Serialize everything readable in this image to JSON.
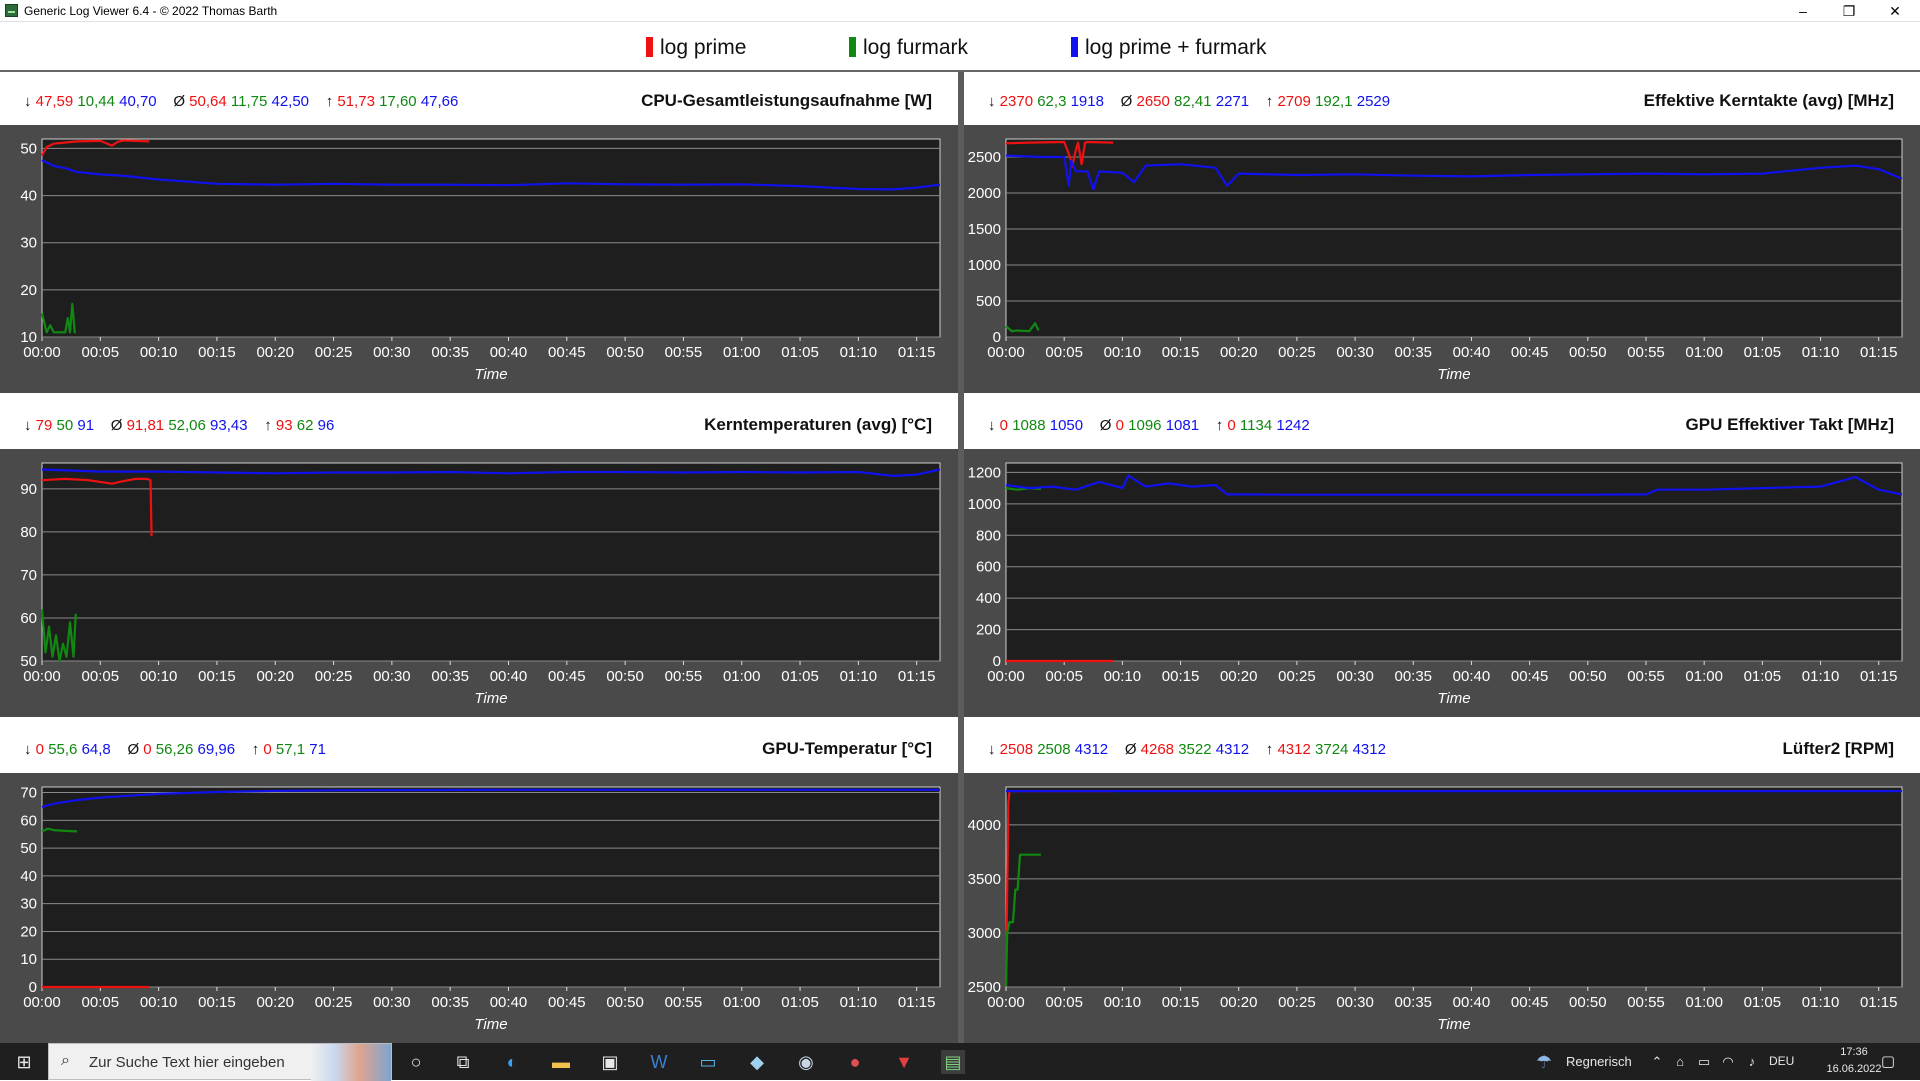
{
  "window": {
    "title": "Generic Log Viewer 6.4 - © 2022 Thomas Barth",
    "controls": {
      "minimize": "–",
      "restore": "❐",
      "close": "✕"
    }
  },
  "legend": [
    {
      "label": "log prime",
      "color": "#ee1111"
    },
    {
      "label": "log furmark",
      "color": "#118811"
    },
    {
      "label": "log prime + furmark",
      "color": "#1111ee"
    }
  ],
  "colors": {
    "prime": "#ee1111",
    "furmark": "#118811",
    "combined": "#1111ee",
    "plot_bg": "#1e1e1e",
    "panel_bg": "#4a4a4a",
    "grid": "#8a8a8a"
  },
  "panels": [
    {
      "title": "CPU-Gesamtleistungsaufnahme [W]",
      "stats": {
        "min_symbol": "↓",
        "avg_symbol": "Ø",
        "max_symbol": "↑",
        "min": [
          "47,59",
          "10,44",
          "40,70"
        ],
        "avg": [
          "50,64",
          "11,75",
          "42,50"
        ],
        "max": [
          "51,73",
          "17,60",
          "47,66"
        ]
      }
    },
    {
      "title": "Effektive Kerntakte (avg) [MHz]",
      "stats": {
        "min_symbol": "↓",
        "avg_symbol": "Ø",
        "max_symbol": "↑",
        "min": [
          "2370",
          "62,3",
          "1918"
        ],
        "avg": [
          "2650",
          "82,41",
          "2271"
        ],
        "max": [
          "2709",
          "192,1",
          "2529"
        ]
      }
    },
    {
      "title": "Kerntemperaturen (avg) [°C]",
      "stats": {
        "min_symbol": "↓",
        "avg_symbol": "Ø",
        "max_symbol": "↑",
        "min": [
          "79",
          "50",
          "91"
        ],
        "avg": [
          "91,81",
          "52,06",
          "93,43"
        ],
        "max": [
          "93",
          "62",
          "96"
        ]
      }
    },
    {
      "title": "GPU Effektiver Takt [MHz]",
      "stats": {
        "min_symbol": "↓",
        "avg_symbol": "Ø",
        "max_symbol": "↑",
        "min": [
          "0",
          "1088",
          "1050"
        ],
        "avg": [
          "0",
          "1096",
          "1081"
        ],
        "max": [
          "0",
          "1134",
          "1242"
        ]
      }
    },
    {
      "title": "GPU-Temperatur [°C]",
      "stats": {
        "min_symbol": "↓",
        "avg_symbol": "Ø",
        "max_symbol": "↑",
        "min": [
          "0",
          "55,6",
          "64,8"
        ],
        "avg": [
          "0",
          "56,26",
          "69,96"
        ],
        "max": [
          "0",
          "57,1",
          "71"
        ]
      }
    },
    {
      "title": "Lüfter2 [RPM]",
      "stats": {
        "min_symbol": "↓",
        "avg_symbol": "Ø",
        "max_symbol": "↑",
        "min": [
          "2508",
          "2508",
          "4312"
        ],
        "avg": [
          "4268",
          "3522",
          "4312"
        ],
        "max": [
          "4312",
          "3724",
          "4312"
        ]
      }
    }
  ],
  "chart_data": [
    {
      "type": "line",
      "title": "CPU-Gesamtleistungsaufnahme [W]",
      "xlabel": "Time",
      "xlim": [
        0,
        77
      ],
      "ylim": [
        10,
        52
      ],
      "yticks": [
        10,
        20,
        30,
        40,
        50
      ],
      "xticks": [
        "00:00",
        "00:05",
        "00:10",
        "00:15",
        "00:20",
        "00:25",
        "00:30",
        "00:35",
        "00:40",
        "00:45",
        "00:50",
        "00:55",
        "01:00",
        "01:05",
        "01:10",
        "01:15"
      ],
      "series": [
        {
          "name": "log prime",
          "color": "#ee1111",
          "x": [
            0,
            0.4,
            1,
            3,
            5,
            6,
            6.5,
            7,
            8,
            9.2
          ],
          "y": [
            48.5,
            50.3,
            51,
            51.5,
            51.6,
            50.6,
            51.4,
            51.7,
            51.6,
            51.5
          ]
        },
        {
          "name": "log furmark",
          "color": "#118811",
          "x": [
            0,
            0.2,
            0.4,
            0.7,
            1,
            1.5,
            2,
            2.2,
            2.4,
            2.6,
            2.8,
            2.9
          ],
          "y": [
            15,
            13,
            11,
            12.5,
            11,
            11,
            11,
            14,
            11,
            17,
            11,
            11
          ]
        },
        {
          "name": "log prime + furmark",
          "color": "#1111ee",
          "x": [
            0,
            1,
            2,
            3,
            5,
            7,
            10,
            15,
            20,
            25,
            30,
            35,
            40,
            45,
            50,
            55,
            60,
            65,
            70,
            73,
            75,
            77
          ],
          "y": [
            47.5,
            46.3,
            45.8,
            45,
            44.5,
            44.2,
            43.4,
            42.5,
            42.3,
            42.5,
            42.3,
            42.3,
            42.2,
            42.6,
            42.4,
            42.3,
            42.4,
            42,
            41.4,
            41.3,
            41.7,
            42.3
          ]
        }
      ]
    },
    {
      "type": "line",
      "title": "Effektive Kerntakte (avg) [MHz]",
      "xlabel": "Time",
      "xlim": [
        0,
        77
      ],
      "ylim": [
        0,
        2750
      ],
      "yticks": [
        0,
        500,
        1000,
        1500,
        2000,
        2500
      ],
      "xticks": [
        "00:00",
        "00:05",
        "00:10",
        "00:15",
        "00:20",
        "00:25",
        "00:30",
        "00:35",
        "00:40",
        "00:45",
        "00:50",
        "00:55",
        "01:00",
        "01:05",
        "01:10",
        "01:15"
      ],
      "series": [
        {
          "name": "log prime",
          "color": "#ee1111",
          "x": [
            0,
            2,
            5,
            5.5,
            5.7,
            6,
            6.2,
            6.5,
            6.8,
            7,
            9.2
          ],
          "y": [
            2690,
            2700,
            2709,
            2500,
            2370,
            2600,
            2700,
            2400,
            2700,
            2709,
            2700
          ]
        },
        {
          "name": "log furmark",
          "color": "#118811",
          "x": [
            0,
            0.5,
            1,
            2,
            2.5,
            2.8
          ],
          "y": [
            150,
            80,
            90,
            80,
            190,
            90
          ]
        },
        {
          "name": "log prime + furmark",
          "color": "#1111ee",
          "x": [
            0,
            3,
            5,
            5.4,
            5.6,
            6,
            7,
            7.5,
            8,
            10,
            11,
            12,
            15,
            18,
            19,
            20,
            25,
            30,
            35,
            40,
            45,
            50,
            55,
            60,
            65,
            70,
            73,
            75,
            77
          ],
          "y": [
            2520,
            2500,
            2500,
            2100,
            2450,
            2300,
            2300,
            2050,
            2300,
            2280,
            2150,
            2380,
            2400,
            2350,
            2100,
            2270,
            2250,
            2260,
            2240,
            2230,
            2250,
            2260,
            2270,
            2260,
            2270,
            2350,
            2380,
            2330,
            2200
          ]
        }
      ]
    },
    {
      "type": "line",
      "title": "Kerntemperaturen (avg) [°C]",
      "xlabel": "Time",
      "xlim": [
        0,
        77
      ],
      "ylim": [
        50,
        96
      ],
      "yticks": [
        50,
        60,
        70,
        80,
        90
      ],
      "xticks": [
        "00:00",
        "00:05",
        "00:10",
        "00:15",
        "00:20",
        "00:25",
        "00:30",
        "00:35",
        "00:40",
        "00:45",
        "00:50",
        "00:55",
        "01:00",
        "01:05",
        "01:10",
        "01:15"
      ],
      "series": [
        {
          "name": "log prime",
          "color": "#ee1111",
          "x": [
            0,
            2,
            4,
            6,
            7,
            8,
            9,
            9.3,
            9.4
          ],
          "y": [
            92,
            92.3,
            92,
            91.2,
            91.8,
            92.3,
            92.3,
            92,
            79
          ]
        },
        {
          "name": "log furmark",
          "color": "#118811",
          "x": [
            0,
            0.3,
            0.6,
            0.9,
            1.2,
            1.5,
            1.8,
            2.1,
            2.4,
            2.7,
            2.9
          ],
          "y": [
            62,
            52,
            58,
            51,
            56,
            50,
            54,
            51,
            59,
            51,
            61
          ]
        },
        {
          "name": "log prime + furmark",
          "color": "#1111ee",
          "x": [
            0,
            5,
            10,
            15,
            20,
            25,
            30,
            35,
            40,
            45,
            50,
            55,
            60,
            65,
            70,
            73,
            75,
            77
          ],
          "y": [
            94.5,
            94,
            94,
            93.8,
            93.6,
            93.8,
            93.8,
            93.9,
            93.6,
            93.9,
            93.9,
            93.8,
            93.9,
            93.8,
            93.9,
            93,
            93.3,
            94.5
          ]
        }
      ]
    },
    {
      "type": "line",
      "title": "GPU Effektiver Takt [MHz]",
      "xlabel": "Time",
      "xlim": [
        0,
        77
      ],
      "ylim": [
        0,
        1260
      ],
      "yticks": [
        0,
        200,
        400,
        600,
        800,
        1000,
        1200
      ],
      "xticks": [
        "00:00",
        "00:05",
        "00:10",
        "00:15",
        "00:20",
        "00:25",
        "00:30",
        "00:35",
        "00:40",
        "00:45",
        "00:50",
        "00:55",
        "01:00",
        "01:05",
        "01:10",
        "01:15"
      ],
      "series": [
        {
          "name": "log prime",
          "color": "#ee1111",
          "x": [
            0,
            9.2
          ],
          "y": [
            0,
            0
          ]
        },
        {
          "name": "log furmark",
          "color": "#118811",
          "x": [
            0,
            1,
            2,
            3
          ],
          "y": [
            1100,
            1090,
            1100,
            1095
          ]
        },
        {
          "name": "log prime + furmark",
          "color": "#1111ee",
          "x": [
            0,
            2,
            4,
            6,
            8,
            10,
            10.5,
            12,
            14,
            16,
            18,
            19,
            20,
            25,
            30,
            35,
            40,
            45,
            50,
            55,
            56,
            60,
            65,
            70,
            72,
            73,
            75,
            77
          ],
          "y": [
            1120,
            1100,
            1110,
            1090,
            1140,
            1100,
            1180,
            1110,
            1130,
            1110,
            1120,
            1060,
            1060,
            1058,
            1058,
            1058,
            1058,
            1058,
            1058,
            1060,
            1090,
            1090,
            1100,
            1110,
            1150,
            1170,
            1090,
            1060
          ]
        }
      ]
    },
    {
      "type": "line",
      "title": "GPU-Temperatur [°C]",
      "xlabel": "Time",
      "xlim": [
        0,
        77
      ],
      "ylim": [
        0,
        72
      ],
      "yticks": [
        0,
        10,
        20,
        30,
        40,
        50,
        60,
        70
      ],
      "xticks": [
        "00:00",
        "00:05",
        "00:10",
        "00:15",
        "00:20",
        "00:25",
        "00:30",
        "00:35",
        "00:40",
        "00:45",
        "00:50",
        "00:55",
        "01:00",
        "01:05",
        "01:10",
        "01:15"
      ],
      "series": [
        {
          "name": "log prime",
          "color": "#ee1111",
          "x": [
            0,
            9.2
          ],
          "y": [
            0,
            0
          ]
        },
        {
          "name": "log furmark",
          "color": "#118811",
          "x": [
            0,
            0.5,
            1,
            2,
            3
          ],
          "y": [
            56,
            57,
            56.5,
            56.2,
            56
          ]
        },
        {
          "name": "log prime + furmark",
          "color": "#1111ee",
          "x": [
            0,
            1,
            3,
            5,
            8,
            10,
            15,
            20,
            25,
            30,
            40,
            50,
            60,
            70,
            77
          ],
          "y": [
            64.8,
            66,
            67.3,
            68.2,
            69,
            69.5,
            70.2,
            70.6,
            70.8,
            70.9,
            71,
            71,
            71,
            71,
            71
          ]
        }
      ]
    },
    {
      "type": "line",
      "title": "Lüfter2 [RPM]",
      "xlabel": "Time",
      "xlim": [
        0,
        77
      ],
      "ylim": [
        2500,
        4350
      ],
      "yticks": [
        2500,
        3000,
        3500,
        4000
      ],
      "xticks": [
        "00:00",
        "00:05",
        "00:10",
        "00:15",
        "00:20",
        "00:25",
        "00:30",
        "00:35",
        "00:40",
        "00:45",
        "00:50",
        "00:55",
        "01:00",
        "01:05",
        "01:10",
        "01:15"
      ],
      "series": [
        {
          "name": "log prime",
          "color": "#ee1111",
          "x": [
            0,
            0.2,
            0.3,
            9.2
          ],
          "y": [
            2508,
            4200,
            4312,
            4312
          ]
        },
        {
          "name": "log furmark",
          "color": "#118811",
          "x": [
            0,
            0.1,
            0.3,
            0.6,
            0.8,
            1,
            1.2,
            1.5,
            3
          ],
          "y": [
            2508,
            3000,
            3100,
            3100,
            3400,
            3400,
            3724,
            3724,
            3724
          ]
        },
        {
          "name": "log prime + furmark",
          "color": "#1111ee",
          "x": [
            0,
            77
          ],
          "y": [
            4312,
            4312
          ]
        }
      ]
    }
  ],
  "taskbar": {
    "search_placeholder": "Zur Suche Text hier eingeben",
    "weather": "Regnerisch",
    "language": "DEU",
    "time": "17:36",
    "date": "16.06.2022"
  }
}
